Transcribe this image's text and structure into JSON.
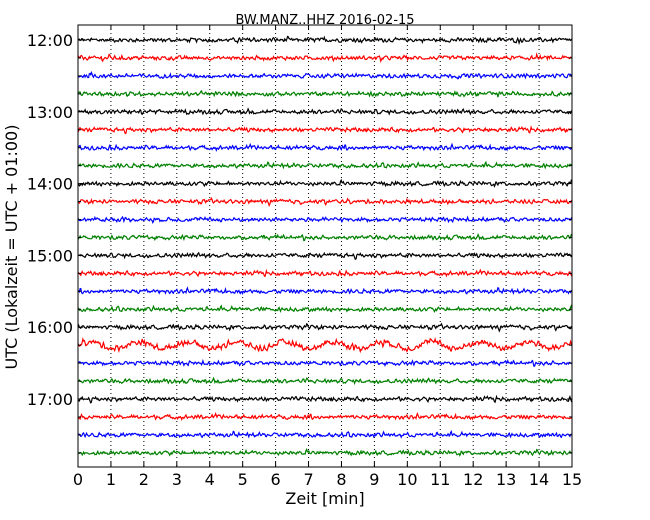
{
  "chart_data": {
    "type": "line",
    "title": "BW.MANZ..HHZ 2016-02-15",
    "xlabel": "Zeit  [min]",
    "ylabel": "UTC (Lokalzeit = UTC + 01:00)",
    "xlim": [
      0,
      15
    ],
    "x_ticks": [
      "0",
      "1",
      "2",
      "3",
      "4",
      "5",
      "6",
      "7",
      "8",
      "9",
      "10",
      "11",
      "12",
      "13",
      "14",
      "15"
    ],
    "y_tick_labels": [
      "12:00",
      "13:00",
      "14:00",
      "15:00",
      "16:00",
      "17:00"
    ],
    "grid": "vertical dotted at each minute",
    "trace_colors": [
      "#000000",
      "#ff0000",
      "#0000ff",
      "#008000"
    ],
    "traces": [
      {
        "start": "12:00",
        "color": "#000000",
        "amplitude": 0.4
      },
      {
        "start": "12:15",
        "color": "#ff0000",
        "amplitude": 0.4
      },
      {
        "start": "12:30",
        "color": "#0000ff",
        "amplitude": 0.4
      },
      {
        "start": "12:45",
        "color": "#008000",
        "amplitude": 0.4
      },
      {
        "start": "13:00",
        "color": "#000000",
        "amplitude": 0.4
      },
      {
        "start": "13:15",
        "color": "#ff0000",
        "amplitude": 0.4
      },
      {
        "start": "13:30",
        "color": "#0000ff",
        "amplitude": 0.4
      },
      {
        "start": "13:45",
        "color": "#008000",
        "amplitude": 0.4
      },
      {
        "start": "14:00",
        "color": "#000000",
        "amplitude": 0.4
      },
      {
        "start": "14:15",
        "color": "#ff0000",
        "amplitude": 0.4
      },
      {
        "start": "14:30",
        "color": "#0000ff",
        "amplitude": 0.4
      },
      {
        "start": "14:45",
        "color": "#008000",
        "amplitude": 0.4
      },
      {
        "start": "15:00",
        "color": "#000000",
        "amplitude": 0.4
      },
      {
        "start": "15:15",
        "color": "#ff0000",
        "amplitude": 0.4
      },
      {
        "start": "15:30",
        "color": "#0000ff",
        "amplitude": 0.4
      },
      {
        "start": "15:45",
        "color": "#008000",
        "amplitude": 0.4
      },
      {
        "start": "16:00",
        "color": "#000000",
        "amplitude": 0.4
      },
      {
        "start": "16:15",
        "color": "#ff0000",
        "amplitude": 0.6
      },
      {
        "start": "16:30",
        "color": "#0000ff",
        "amplitude": 0.4
      },
      {
        "start": "16:45",
        "color": "#008000",
        "amplitude": 0.4
      },
      {
        "start": "17:00",
        "color": "#000000",
        "amplitude": 0.4
      },
      {
        "start": "17:15",
        "color": "#ff0000",
        "amplitude": 0.4
      },
      {
        "start": "17:30",
        "color": "#0000ff",
        "amplitude": 0.4
      },
      {
        "start": "17:45",
        "color": "#008000",
        "amplitude": 0.4
      }
    ]
  }
}
